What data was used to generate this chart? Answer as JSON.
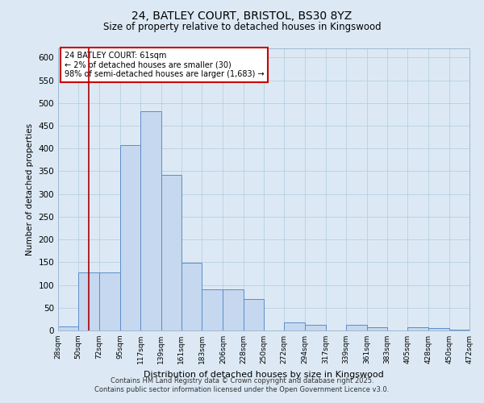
{
  "title_line1": "24, BATLEY COURT, BRISTOL, BS30 8YZ",
  "title_line2": "Size of property relative to detached houses in Kingswood",
  "xlabel": "Distribution of detached houses by size in Kingswood",
  "ylabel": "Number of detached properties",
  "annotation_title": "24 BATLEY COURT: 61sqm",
  "annotation_line2": "← 2% of detached houses are smaller (30)",
  "annotation_line3": "98% of semi-detached houses are larger (1,683) →",
  "property_size": 61,
  "bin_edges": [
    28,
    50,
    72,
    95,
    117,
    139,
    161,
    183,
    206,
    228,
    250,
    272,
    294,
    317,
    339,
    361,
    383,
    405,
    428,
    450,
    472
  ],
  "bar_values": [
    8,
    127,
    127,
    408,
    482,
    342,
    148,
    90,
    90,
    69,
    0,
    18,
    13,
    0,
    13,
    7,
    0,
    7,
    5,
    2
  ],
  "bar_color": "#c5d8ef",
  "bar_edge_color": "#5b8dc8",
  "vline_color": "#aa0000",
  "vline_x": 61,
  "annotation_box_color": "#cc0000",
  "background_color": "#dce9f5",
  "plot_bg_color": "#dce9f5",
  "grid_color": "#b8cfe0",
  "ylim": [
    0,
    620
  ],
  "yticks": [
    0,
    50,
    100,
    150,
    200,
    250,
    300,
    350,
    400,
    450,
    500,
    550,
    600
  ],
  "footnote1": "Contains HM Land Registry data © Crown copyright and database right 2025.",
  "footnote2": "Contains public sector information licensed under the Open Government Licence v3.0."
}
